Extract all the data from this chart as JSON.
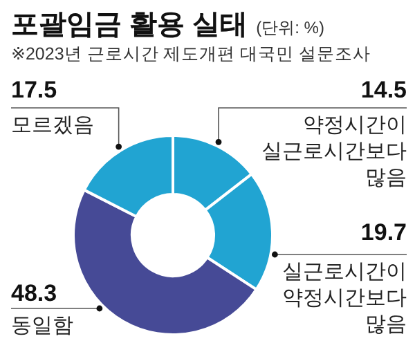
{
  "chart_data": {
    "type": "donut",
    "title": "포괄임금 활용 실태",
    "subtitle": "※2023년 근로시간 제도개편 대국민 설문조사",
    "annotations": [
      "(단위: %)"
    ],
    "categories": [
      "약정시간이 실근로시간보다 많음",
      "실근로시간이 약정시간보다 많음",
      "동일함",
      "모르겠음"
    ],
    "values": [
      14.5,
      19.7,
      48.3,
      17.5
    ],
    "colors": [
      "#21a4d2",
      "#21a4d2",
      "#464a96",
      "#21a4d2"
    ],
    "data_labels": true
  }
}
